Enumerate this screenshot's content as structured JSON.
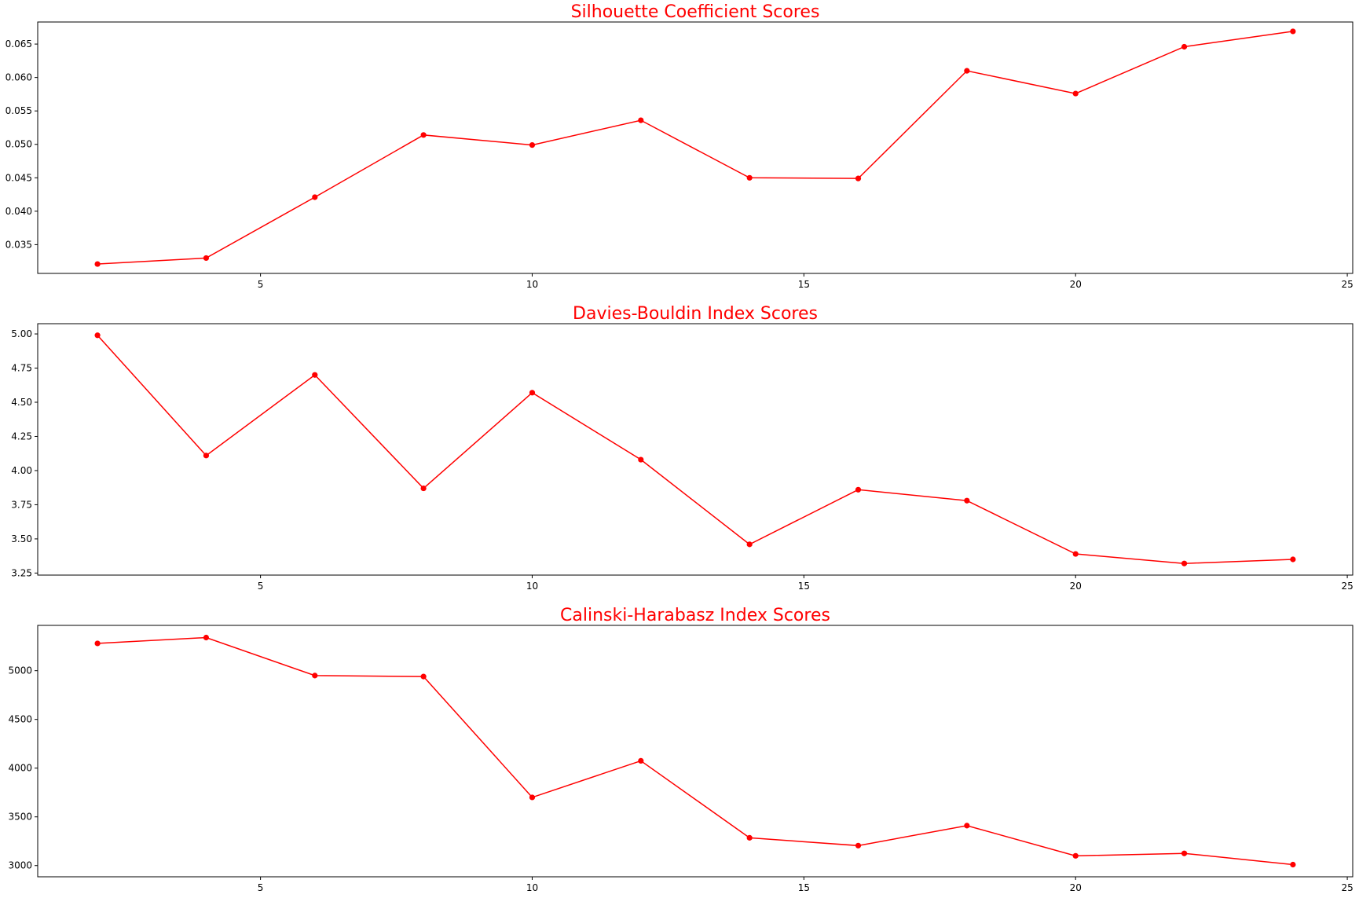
{
  "line_color": "#ff0000",
  "title_color": "#ff0000",
  "chart_data": [
    {
      "type": "line",
      "title": "Silhouette Coefficient Scores",
      "x": [
        2,
        4,
        6,
        8,
        10,
        12,
        14,
        16,
        18,
        20,
        22,
        24
      ],
      "series": [
        {
          "values": [
            0.0321,
            0.033,
            0.0421,
            0.0514,
            0.0499,
            0.0536,
            0.045,
            0.0449,
            0.061,
            0.0576,
            0.0646,
            0.0669
          ]
        }
      ],
      "xlim": [
        0.9,
        25.1
      ],
      "ylim": [
        0.0307,
        0.0683
      ],
      "xticks": [
        5,
        10,
        15,
        20,
        25
      ],
      "yticks": [
        0.035,
        0.04,
        0.045,
        0.05,
        0.055,
        0.06,
        0.065
      ],
      "xtick_labels": [
        "5",
        "10",
        "15",
        "20",
        "25"
      ],
      "ytick_labels": [
        "0.035",
        "0.040",
        "0.045",
        "0.050",
        "0.055",
        "0.060",
        "0.065"
      ],
      "marker": "circle",
      "grid": false,
      "legend": "none"
    },
    {
      "type": "line",
      "title": "Davies-Bouldin Index Scores",
      "x": [
        2,
        4,
        6,
        8,
        10,
        12,
        14,
        16,
        18,
        20,
        22,
        24
      ],
      "series": [
        {
          "values": [
            4.99,
            4.11,
            4.7,
            3.87,
            4.57,
            4.08,
            3.46,
            3.86,
            3.78,
            3.39,
            3.32,
            3.35
          ]
        }
      ],
      "xlim": [
        0.9,
        25.1
      ],
      "ylim": [
        3.235,
        5.075
      ],
      "xticks": [
        5,
        10,
        15,
        20,
        25
      ],
      "yticks": [
        3.25,
        3.5,
        3.75,
        4.0,
        4.25,
        4.5,
        4.75,
        5.0
      ],
      "xtick_labels": [
        "5",
        "10",
        "15",
        "20",
        "25"
      ],
      "ytick_labels": [
        "3.25",
        "3.50",
        "3.75",
        "4.00",
        "4.25",
        "4.50",
        "4.75",
        "5.00"
      ],
      "marker": "circle",
      "grid": false,
      "legend": "none"
    },
    {
      "type": "line",
      "title": "Calinski-Harabasz Index Scores",
      "x": [
        2,
        4,
        6,
        8,
        10,
        12,
        14,
        16,
        18,
        20,
        22,
        24
      ],
      "series": [
        {
          "values": [
            5280,
            5340,
            4950,
            4940,
            3700,
            4075,
            3285,
            3205,
            3410,
            3100,
            3125,
            3010
          ]
        }
      ],
      "xlim": [
        0.9,
        25.1
      ],
      "ylim": [
        2885,
        5465
      ],
      "xticks": [
        5,
        10,
        15,
        20,
        25
      ],
      "yticks": [
        3000,
        3500,
        4000,
        4500,
        5000
      ],
      "xtick_labels": [
        "5",
        "10",
        "15",
        "20",
        "25"
      ],
      "ytick_labels": [
        "3000",
        "3500",
        "4000",
        "4500",
        "5000"
      ],
      "marker": "circle",
      "grid": false,
      "legend": "none"
    }
  ]
}
